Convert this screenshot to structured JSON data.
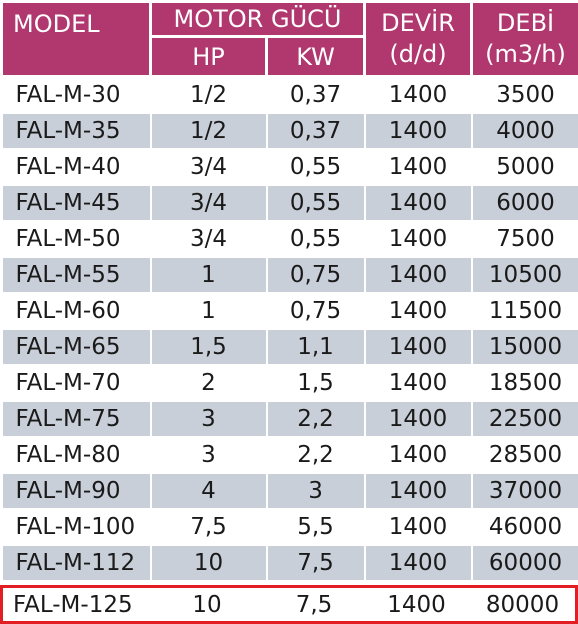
{
  "header": {
    "model": "MODEL",
    "motor_gucu": "MOTOR GÜCÜ",
    "hp": "HP",
    "kw": "KW",
    "devir": "DEVİR",
    "devir_unit": "(d/d)",
    "debi": "DEBİ",
    "debi_unit": "(m3/h)"
  },
  "rows": [
    {
      "model": "FAL-M-30",
      "hp": "1/2",
      "kw": "0,37",
      "devir": "1400",
      "debi": "3500"
    },
    {
      "model": "FAL-M-35",
      "hp": "1/2",
      "kw": "0,37",
      "devir": "1400",
      "debi": "4000"
    },
    {
      "model": "FAL-M-40",
      "hp": "3/4",
      "kw": "0,55",
      "devir": "1400",
      "debi": "5000"
    },
    {
      "model": "FAL-M-45",
      "hp": "3/4",
      "kw": "0,55",
      "devir": "1400",
      "debi": "6000"
    },
    {
      "model": "FAL-M-50",
      "hp": "3/4",
      "kw": "0,55",
      "devir": "1400",
      "debi": "7500"
    },
    {
      "model": "FAL-M-55",
      "hp": "1",
      "kw": "0,75",
      "devir": "1400",
      "debi": "10500"
    },
    {
      "model": "FAL-M-60",
      "hp": "1",
      "kw": "0,75",
      "devir": "1400",
      "debi": "11500"
    },
    {
      "model": "FAL-M-65",
      "hp": "1,5",
      "kw": "1,1",
      "devir": "1400",
      "debi": "15000"
    },
    {
      "model": "FAL-M-70",
      "hp": "2",
      "kw": "1,5",
      "devir": "1400",
      "debi": "18500"
    },
    {
      "model": "FAL-M-75",
      "hp": "3",
      "kw": "2,2",
      "devir": "1400",
      "debi": "22500"
    },
    {
      "model": "FAL-M-80",
      "hp": "3",
      "kw": "2,2",
      "devir": "1400",
      "debi": "28500"
    },
    {
      "model": "FAL-M-90",
      "hp": "4",
      "kw": "3",
      "devir": "1400",
      "debi": "37000"
    },
    {
      "model": "FAL-M-100",
      "hp": "7,5",
      "kw": "5,5",
      "devir": "1400",
      "debi": "46000"
    },
    {
      "model": "FAL-M-112",
      "hp": "10",
      "kw": "7,5",
      "devir": "1400",
      "debi": "60000"
    }
  ],
  "highlighted_row": {
    "model": "FAL-M-125",
    "hp": "10",
    "kw": "7,5",
    "devir": "1400",
    "debi": "80000"
  },
  "colors": {
    "header_bg": "#b0386e",
    "stripe_bg": "#c9cfd9",
    "highlight_border": "#e21d24"
  }
}
